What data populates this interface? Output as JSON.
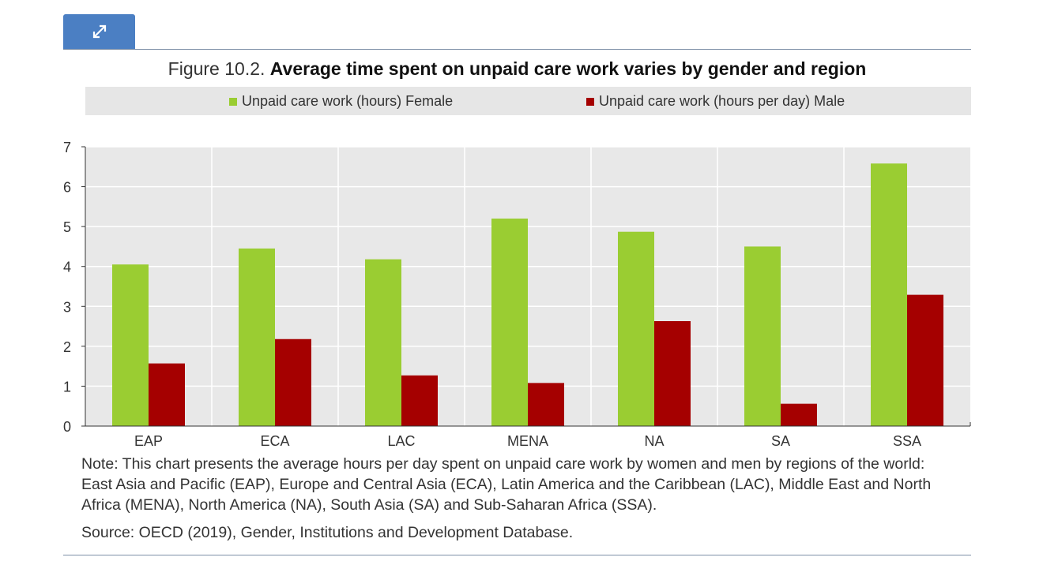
{
  "toolbar": {
    "expand_icon": "expand-arrows-icon"
  },
  "figure": {
    "number": "Figure 10.2.",
    "title": "Average time spent on unpaid care work varies by gender and region"
  },
  "legend": {
    "female_label": "Unpaid care work (hours) Female",
    "male_label": "Unpaid care work (hours per day) Male"
  },
  "colors": {
    "female": "#9acd32",
    "male": "#a50000",
    "plot_bg": "#e8e8e8",
    "button": "#4b7fc3"
  },
  "chart_data": {
    "type": "bar",
    "categories": [
      "EAP",
      "ECA",
      "LAC",
      "MENA",
      "NA",
      "SA",
      "SSA"
    ],
    "series": [
      {
        "name": "Unpaid care work (hours) Female",
        "values": [
          4.05,
          4.45,
          4.18,
          5.2,
          4.87,
          4.5,
          6.58
        ]
      },
      {
        "name": "Unpaid care work (hours per day) Male",
        "values": [
          1.57,
          2.18,
          1.27,
          1.08,
          2.63,
          0.56,
          3.29
        ]
      }
    ],
    "ylim": [
      0,
      7
    ],
    "yticks": [
      0,
      1,
      2,
      3,
      4,
      5,
      6,
      7
    ],
    "grid": true,
    "legend_position": "top"
  },
  "note": "Note: This chart presents the average hours per day spent on unpaid care work by women and men by regions of the world: East Asia and Pacific (EAP), Europe and Central Asia (ECA), Latin America and the Caribbean (LAC), Middle East and North Africa (MENA), North America (NA), South Asia (SA) and Sub-Saharan Africa (SSA).",
  "source": "Source: OECD (2019), Gender, Institutions and Development Database."
}
